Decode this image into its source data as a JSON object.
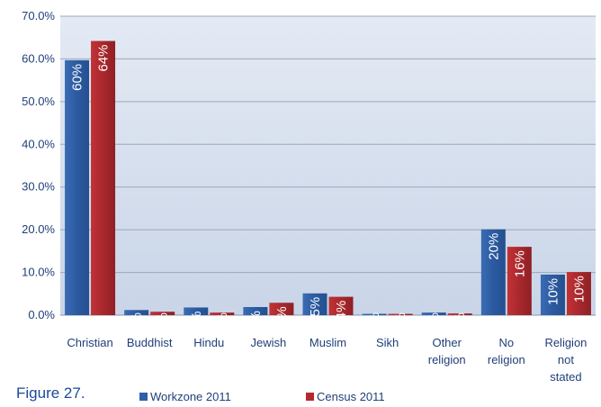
{
  "figure_caption": "Figure 27.",
  "chart_data": {
    "type": "bar",
    "title": "",
    "xlabel": "",
    "ylabel": "",
    "ylim": [
      0,
      70
    ],
    "yticks": [
      "0.0%",
      "10.0%",
      "20.0%",
      "30.0%",
      "40.0%",
      "50.0%",
      "60.0%",
      "70.0%"
    ],
    "grid": true,
    "legend_position": "bottom",
    "categories": [
      [
        "Christian"
      ],
      [
        "Buddhist"
      ],
      [
        "Hindu"
      ],
      [
        "Jewish"
      ],
      [
        "Muslim"
      ],
      [
        "Sikh"
      ],
      [
        "Other",
        "religion"
      ],
      [
        "No",
        "religion"
      ],
      [
        "Religion",
        "not",
        "stated"
      ]
    ],
    "series": [
      {
        "name": "Workzone 2011",
        "color": "#2f5fa7",
        "values": [
          59.7,
          1.2,
          1.8,
          1.9,
          5.1,
          0.3,
          0.6,
          20.1,
          9.5
        ],
        "labels": [
          "60%",
          "1%",
          "2%",
          "2%",
          "5%",
          "0%",
          "1%",
          "20%",
          "10%"
        ]
      },
      {
        "name": "Census 2011",
        "color": "#b22a2e",
        "values": [
          64.2,
          0.8,
          0.6,
          2.9,
          4.3,
          0.3,
          0.4,
          16.0,
          10.1
        ],
        "labels": [
          "64%",
          "1%",
          "1%",
          "3%",
          "4%",
          "0%",
          "0%",
          "16%",
          "10%"
        ]
      }
    ]
  }
}
